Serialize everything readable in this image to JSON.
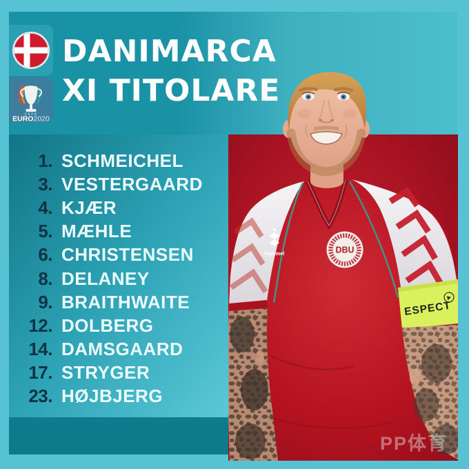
{
  "header": {
    "title_line1": "DANIMARCA",
    "title_line2": "XI TITOLARE"
  },
  "icons": {
    "flag": "denmark-flag-icon",
    "tournament": "euro2020-logo"
  },
  "euro_logo": {
    "uefa": "UEFA",
    "main": "EURO",
    "year": "2020"
  },
  "lineup": {
    "players": [
      {
        "number": "1.",
        "name": "SCHMEICHEL"
      },
      {
        "number": "3.",
        "name": "VESTERGAARD"
      },
      {
        "number": "4.",
        "name": "KJÆR"
      },
      {
        "number": "5.",
        "name": "MÆHLE"
      },
      {
        "number": "6.",
        "name": "CHRISTENSEN"
      },
      {
        "number": "8.",
        "name": "DELANEY"
      },
      {
        "number": "9.",
        "name": "BRAITHWAITE"
      },
      {
        "number": "12.",
        "name": "DOLBERG"
      },
      {
        "number": "14.",
        "name": "DAMSGAARD"
      },
      {
        "number": "17.",
        "name": "STRYGER"
      },
      {
        "number": "23.",
        "name": "HØJBJERG"
      }
    ]
  },
  "jersey": {
    "crest_text": "DBU",
    "brand_text": "hummel",
    "armband_text": "ESPECT"
  },
  "watermark": {
    "text": "PP体育"
  },
  "colors": {
    "frame": "#56c2d3",
    "background_teal": "#1a92a5",
    "panel_dark": "#117586",
    "panel_light": "#5bc8d8",
    "photo_red": "#b5121f",
    "number_text": "#0f3345",
    "name_text": "#ecfbfd",
    "armband": "#d9f15c",
    "flag_red": "#cf1b2e",
    "euro_card": "#3b7e9d"
  }
}
